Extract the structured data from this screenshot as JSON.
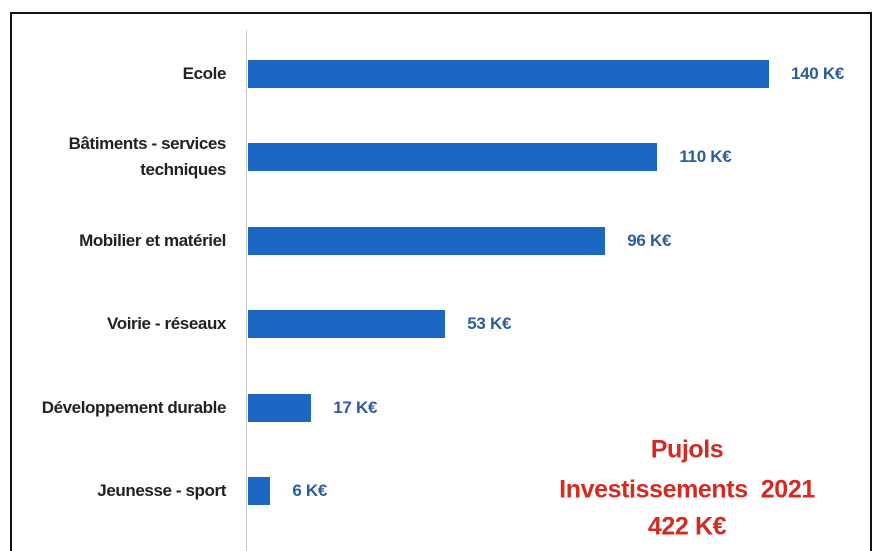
{
  "chart_data": {
    "type": "hbar",
    "categories": [
      "Ecole",
      "Bâtiments - services techniques",
      "Mobilier et matériel",
      "Voirie - réseaux",
      "Développement durable",
      "Jeunesse - sport"
    ],
    "values": [
      140,
      110,
      96,
      53,
      17,
      6
    ],
    "value_labels": [
      "140 K€",
      "110 K€",
      "96 K€",
      "53 K€",
      "17 K€",
      "6 K€"
    ],
    "color": "#1c67c4",
    "annotation": [
      "Pujols",
      "Investissements  2021",
      "422 K€"
    ],
    "annotation_color": "#d42a22"
  }
}
